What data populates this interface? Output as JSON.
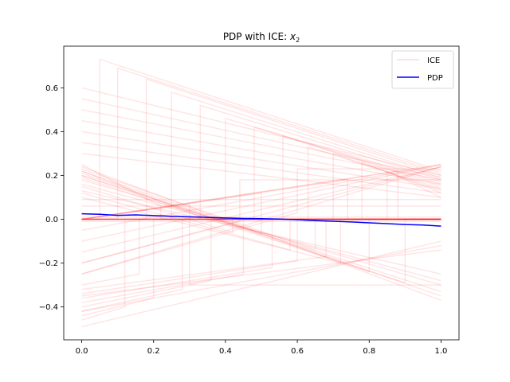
{
  "chart_data": {
    "type": "line",
    "title": "PDP with ICE: ",
    "title_var": "x",
    "title_sub": "2",
    "xlabel": "",
    "ylabel": "",
    "xlim": [
      -0.05,
      1.05
    ],
    "ylim": [
      -0.55,
      0.79
    ],
    "xticks": [
      0.0,
      0.2,
      0.4,
      0.6,
      0.8,
      1.0
    ],
    "xtick_labels": [
      "0.0",
      "0.2",
      "0.4",
      "0.6",
      "0.8",
      "1.0"
    ],
    "yticks": [
      -0.4,
      -0.2,
      0.0,
      0.2,
      0.4,
      0.6
    ],
    "ytick_labels": [
      "−0.4",
      "−0.2",
      "0.0",
      "0.2",
      "0.4",
      "0.6"
    ],
    "legend_position": "top-right",
    "ice_color": "#ff0000",
    "ice_alpha": 0.1,
    "pdp_color": "#0000ff",
    "series": [
      {
        "name": "ICE",
        "kind": "ice",
        "description_free": true,
        "curves": [
          {
            "x": [
              0.0,
              0.22,
              0.22,
              1.0
            ],
            "y": [
              0.25,
              0.06,
              0.0,
              0.0
            ]
          },
          {
            "x": [
              0.0,
              0.35,
              0.35,
              1.0
            ],
            "y": [
              0.22,
              0.0,
              0.0,
              0.0
            ]
          },
          {
            "x": [
              0.0,
              0.5,
              0.5,
              1.0
            ],
            "y": [
              0.2,
              -0.07,
              0.0,
              0.0
            ]
          },
          {
            "x": [
              0.0,
              1.0
            ],
            "y": [
              0.24,
              -0.37
            ]
          },
          {
            "x": [
              0.0,
              1.0
            ],
            "y": [
              0.22,
              -0.35
            ]
          },
          {
            "x": [
              0.0,
              1.0
            ],
            "y": [
              0.2,
              -0.33
            ]
          },
          {
            "x": [
              0.0,
              1.0
            ],
            "y": [
              0.18,
              -0.3
            ]
          },
          {
            "x": [
              0.0,
              1.0
            ],
            "y": [
              0.16,
              -0.28
            ]
          },
          {
            "x": [
              0.0,
              1.0
            ],
            "y": [
              0.13,
              -0.25
            ]
          },
          {
            "x": [
              0.0,
              0.65,
              0.65,
              1.0
            ],
            "y": [
              0.23,
              -0.14,
              0.0,
              0.0
            ]
          },
          {
            "x": [
              0.0,
              0.8,
              0.8,
              1.0
            ],
            "y": [
              0.21,
              -0.24,
              0.0,
              0.0
            ]
          },
          {
            "x": [
              0.0,
              0.9,
              0.9,
              1.0
            ],
            "y": [
              0.19,
              -0.29,
              0.0,
              0.0
            ]
          },
          {
            "x": [
              0.0,
              0.42,
              0.42,
              1.0
            ],
            "y": [
              0.15,
              -0.06,
              0.0,
              0.0
            ]
          },
          {
            "x": [
              0.0,
              0.58,
              0.58,
              1.0
            ],
            "y": [
              0.12,
              -0.14,
              0.0,
              0.0
            ]
          },
          {
            "x": [
              0.0,
              0.72,
              0.72,
              1.0
            ],
            "y": [
              0.1,
              -0.2,
              0.0,
              0.0
            ]
          },
          {
            "x": [
              0.0,
              0.3,
              0.3,
              1.0
            ],
            "y": [
              0.0,
              0.07,
              -0.3,
              -0.3
            ]
          },
          {
            "x": [
              0.0,
              0.05,
              0.05,
              1.0
            ],
            "y": [
              0.0,
              0.0,
              0.73,
              0.22
            ]
          },
          {
            "x": [
              0.0,
              0.1,
              0.1,
              1.0
            ],
            "y": [
              0.0,
              0.0,
              0.69,
              0.21
            ]
          },
          {
            "x": [
              0.0,
              0.18,
              0.18,
              1.0
            ],
            "y": [
              0.0,
              0.0,
              0.64,
              0.2
            ]
          },
          {
            "x": [
              0.0,
              0.25,
              0.25,
              1.0
            ],
            "y": [
              0.0,
              0.0,
              0.58,
              0.19
            ]
          },
          {
            "x": [
              0.0,
              0.33,
              0.33,
              1.0
            ],
            "y": [
              0.0,
              0.0,
              0.52,
              0.18
            ]
          },
          {
            "x": [
              0.0,
              0.4,
              0.4,
              1.0
            ],
            "y": [
              0.0,
              0.0,
              0.46,
              0.17
            ]
          },
          {
            "x": [
              0.0,
              0.48,
              0.48,
              1.0
            ],
            "y": [
              0.0,
              0.0,
              0.42,
              0.16
            ]
          },
          {
            "x": [
              0.0,
              0.56,
              0.56,
              1.0
            ],
            "y": [
              0.0,
              0.0,
              0.38,
              0.15
            ]
          },
          {
            "x": [
              0.0,
              0.63,
              0.63,
              1.0
            ],
            "y": [
              0.0,
              0.0,
              0.33,
              0.14
            ]
          },
          {
            "x": [
              0.0,
              0.7,
              0.7,
              1.0
            ],
            "y": [
              0.0,
              0.0,
              0.3,
              0.13
            ]
          },
          {
            "x": [
              0.0,
              0.78,
              0.78,
              1.0
            ],
            "y": [
              0.0,
              0.0,
              0.26,
              0.12
            ]
          },
          {
            "x": [
              0.0,
              0.85,
              0.85,
              1.0
            ],
            "y": [
              0.0,
              0.0,
              0.22,
              0.1
            ]
          },
          {
            "x": [
              0.0,
              1.0
            ],
            "y": [
              0.6,
              0.2
            ]
          },
          {
            "x": [
              0.0,
              1.0
            ],
            "y": [
              0.55,
              0.19
            ]
          },
          {
            "x": [
              0.0,
              1.0
            ],
            "y": [
              0.5,
              0.18
            ]
          },
          {
            "x": [
              0.0,
              1.0
            ],
            "y": [
              0.45,
              0.16
            ]
          },
          {
            "x": [
              0.0,
              1.0
            ],
            "y": [
              0.4,
              0.14
            ]
          },
          {
            "x": [
              0.0,
              1.0
            ],
            "y": [
              0.35,
              0.12
            ]
          },
          {
            "x": [
              0.0,
              1.0
            ],
            "y": [
              0.3,
              0.1
            ]
          },
          {
            "x": [
              0.0,
              0.12,
              0.12,
              1.0
            ],
            "y": [
              -0.46,
              -0.4,
              0.0,
              0.0
            ]
          },
          {
            "x": [
              0.0,
              0.2,
              0.2,
              1.0
            ],
            "y": [
              -0.44,
              -0.36,
              0.0,
              0.0
            ]
          },
          {
            "x": [
              0.0,
              0.28,
              0.28,
              1.0
            ],
            "y": [
              -0.42,
              -0.32,
              0.0,
              0.0
            ]
          },
          {
            "x": [
              0.0,
              0.36,
              0.36,
              1.0
            ],
            "y": [
              -0.4,
              -0.28,
              0.0,
              0.0
            ]
          },
          {
            "x": [
              0.0,
              0.45,
              0.45,
              1.0
            ],
            "y": [
              -0.38,
              -0.25,
              0.0,
              0.0
            ]
          },
          {
            "x": [
              0.0,
              0.53,
              0.53,
              1.0
            ],
            "y": [
              -0.36,
              -0.22,
              0.0,
              0.0
            ]
          },
          {
            "x": [
              0.0,
              0.6,
              0.6,
              1.0
            ],
            "y": [
              -0.34,
              -0.19,
              0.0,
              0.0
            ]
          },
          {
            "x": [
              0.0,
              0.68,
              0.68,
              1.0
            ],
            "y": [
              -0.32,
              -0.17,
              0.0,
              0.0
            ]
          },
          {
            "x": [
              0.0,
              0.16,
              0.16,
              1.0
            ],
            "y": [
              -0.3,
              -0.25,
              0.0,
              0.0
            ]
          },
          {
            "x": [
              0.0,
              1.0
            ],
            "y": [
              -0.49,
              -0.1
            ]
          },
          {
            "x": [
              0.0,
              1.0
            ],
            "y": [
              -0.42,
              -0.12
            ]
          },
          {
            "x": [
              0.0,
              1.0
            ],
            "y": [
              -0.35,
              -0.14
            ]
          },
          {
            "x": [
              0.0,
              1.0
            ],
            "y": [
              0.0,
              0.25
            ]
          },
          {
            "x": [
              0.0,
              1.0
            ],
            "y": [
              -0.05,
              0.25
            ]
          },
          {
            "x": [
              0.0,
              1.0
            ],
            "y": [
              -0.1,
              0.25
            ]
          },
          {
            "x": [
              0.0,
              1.0
            ],
            "y": [
              -0.15,
              0.24
            ]
          },
          {
            "x": [
              0.0,
              1.0
            ],
            "y": [
              -0.2,
              0.24
            ]
          },
          {
            "x": [
              0.0,
              1.0
            ],
            "y": [
              -0.25,
              0.24
            ]
          },
          {
            "x": [
              0.0,
              0.5,
              0.5,
              1.0
            ],
            "y": [
              0.0,
              0.12,
              0.0,
              0.0
            ]
          },
          {
            "x": [
              0.0,
              0.74,
              0.74,
              1.0
            ],
            "y": [
              0.0,
              0.18,
              0.0,
              0.0
            ]
          },
          {
            "x": [
              0.0,
              0.88,
              0.88,
              1.0
            ],
            "y": [
              0.0,
              0.22,
              0.0,
              0.0
            ]
          },
          {
            "x": [
              0.0,
              0.6,
              0.6,
              1.0
            ],
            "y": [
              -0.25,
              0.03,
              0.23,
              0.23
            ]
          },
          {
            "x": [
              0.0,
              0.44,
              0.44,
              1.0
            ],
            "y": [
              -0.2,
              -0.01,
              0.18,
              0.18
            ]
          },
          {
            "x": [
              0.0,
              1.0
            ],
            "y": [
              0.09,
              0.09
            ]
          },
          {
            "x": [
              0.0,
              1.0
            ],
            "y": [
              0.06,
              0.06
            ]
          },
          {
            "x": [
              0.0,
              1.0
            ],
            "y": [
              0.01,
              0.01
            ]
          },
          {
            "x": [
              0.0,
              1.0
            ],
            "y": [
              -0.01,
              -0.01
            ]
          }
        ]
      },
      {
        "name": "PDP",
        "kind": "pdp",
        "x": [
          0.0,
          0.05,
          0.1,
          0.15,
          0.2,
          0.25,
          0.3,
          0.35,
          0.4,
          0.45,
          0.5,
          0.55,
          0.6,
          0.65,
          0.7,
          0.75,
          0.8,
          0.85,
          0.9,
          0.95,
          1.0
        ],
        "y": [
          0.025,
          0.023,
          0.018,
          0.02,
          0.017,
          0.014,
          0.011,
          0.009,
          0.006,
          0.004,
          0.003,
          0.001,
          -0.002,
          -0.006,
          -0.009,
          -0.012,
          -0.016,
          -0.02,
          -0.024,
          -0.026,
          -0.031
        ]
      }
    ],
    "legend": [
      "ICE",
      "PDP"
    ]
  }
}
